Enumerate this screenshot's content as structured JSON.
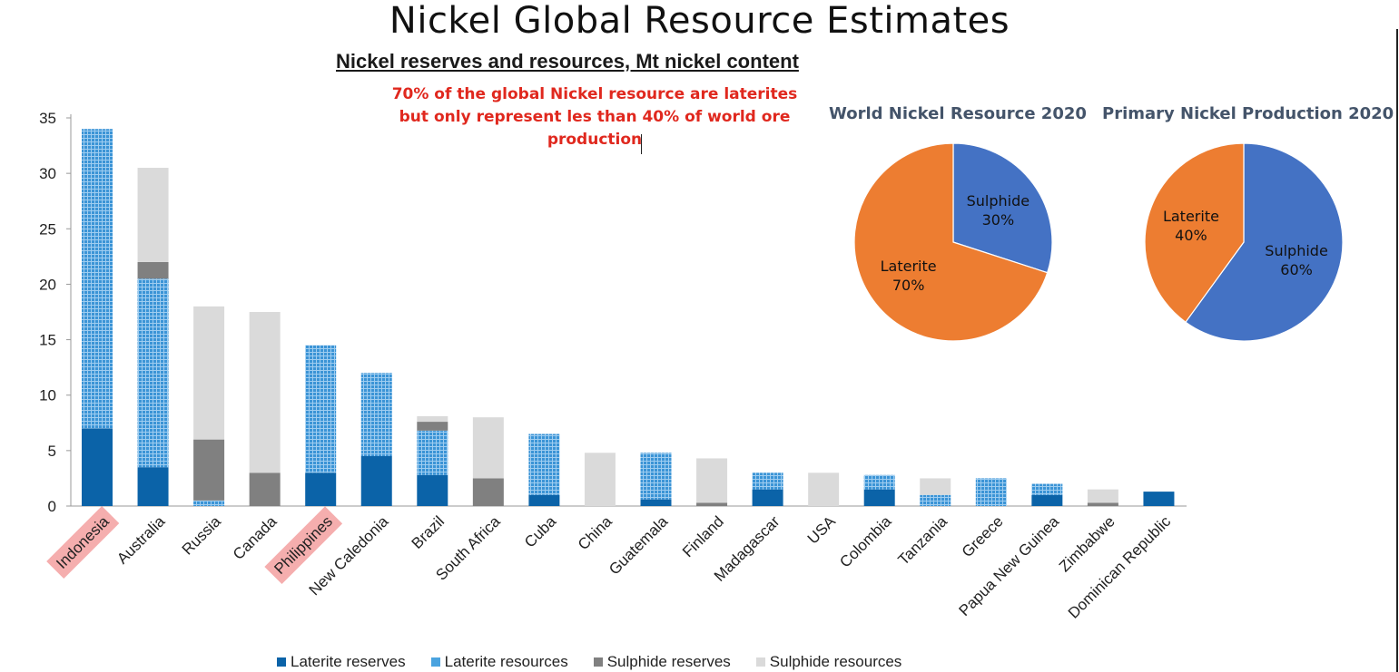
{
  "page": {
    "title": "Nickel Global Resource Estimates",
    "annotation_lines": [
      "70% of the global Nickel resource are laterites",
      "but only represent les than 40% of world ore",
      "production"
    ]
  },
  "colors": {
    "laterite_reserves": "#0b63a8",
    "laterite_resources": "#4aa3df",
    "sulphide_reserves": "#808080",
    "sulphide_resources": "#dadada",
    "highlight": "#f5aeae",
    "pie_sulphide": "#4472c4",
    "pie_laterite": "#ed7d31",
    "annotation": "#e0281e"
  },
  "chart_data": [
    {
      "type": "bar",
      "stacked": true,
      "title": "Nickel reserves and resources, Mt nickel content",
      "xlabel": "",
      "ylabel": "",
      "ylim": [
        0,
        35
      ],
      "yticks": [
        0,
        5,
        10,
        15,
        20,
        25,
        30,
        35
      ],
      "grid": false,
      "legend_position": "bottom",
      "categories": [
        "Indonesia",
        "Australia",
        "Russia",
        "Canada",
        "Philippines",
        "New Caledonia",
        "Brazil",
        "South Africa",
        "Cuba",
        "China",
        "Guatemala",
        "Finland",
        "Madagascar",
        "USA",
        "Colombia",
        "Tanzania",
        "Greece",
        "Papua New Guinea",
        "Zimbabwe",
        "Dominican Republic"
      ],
      "highlighted_categories": [
        "Indonesia",
        "Philippines"
      ],
      "series": [
        {
          "name": "Laterite reserves",
          "values": [
            7,
            3.5,
            0,
            0,
            3,
            4.5,
            2.8,
            0,
            1,
            0,
            0.6,
            0,
            1.5,
            0,
            1.5,
            0,
            0,
            1,
            0,
            1.3
          ]
        },
        {
          "name": "Laterite resources",
          "values": [
            27,
            17,
            0.5,
            0,
            11.5,
            7.5,
            4,
            0,
            5.5,
            0,
            4.2,
            0,
            1.5,
            0,
            1.3,
            1,
            2.5,
            1,
            0,
            0
          ]
        },
        {
          "name": "Sulphide reserves",
          "values": [
            0,
            1.5,
            5.5,
            3,
            0,
            0,
            0.8,
            2.5,
            0,
            0,
            0,
            0.3,
            0,
            0,
            0,
            0,
            0,
            0,
            0.3,
            0
          ]
        },
        {
          "name": "Sulphide resources",
          "values": [
            0,
            8.5,
            12,
            14.5,
            0,
            0,
            0.5,
            5.5,
            0,
            4.8,
            0,
            4,
            0,
            3,
            0,
            1.5,
            0,
            0,
            1.2,
            0
          ]
        }
      ]
    },
    {
      "type": "pie",
      "title": "World Nickel Resource 2020",
      "slices": [
        {
          "label": "Sulphide",
          "value": 30,
          "display": "30%"
        },
        {
          "label": "Laterite",
          "value": 70,
          "display": "70%"
        }
      ]
    },
    {
      "type": "pie",
      "title": "Primary Nickel Production 2020",
      "slices": [
        {
          "label": "Sulphide",
          "value": 60,
          "display": "60%"
        },
        {
          "label": "Laterite",
          "value": 40,
          "display": "40%"
        }
      ]
    }
  ]
}
